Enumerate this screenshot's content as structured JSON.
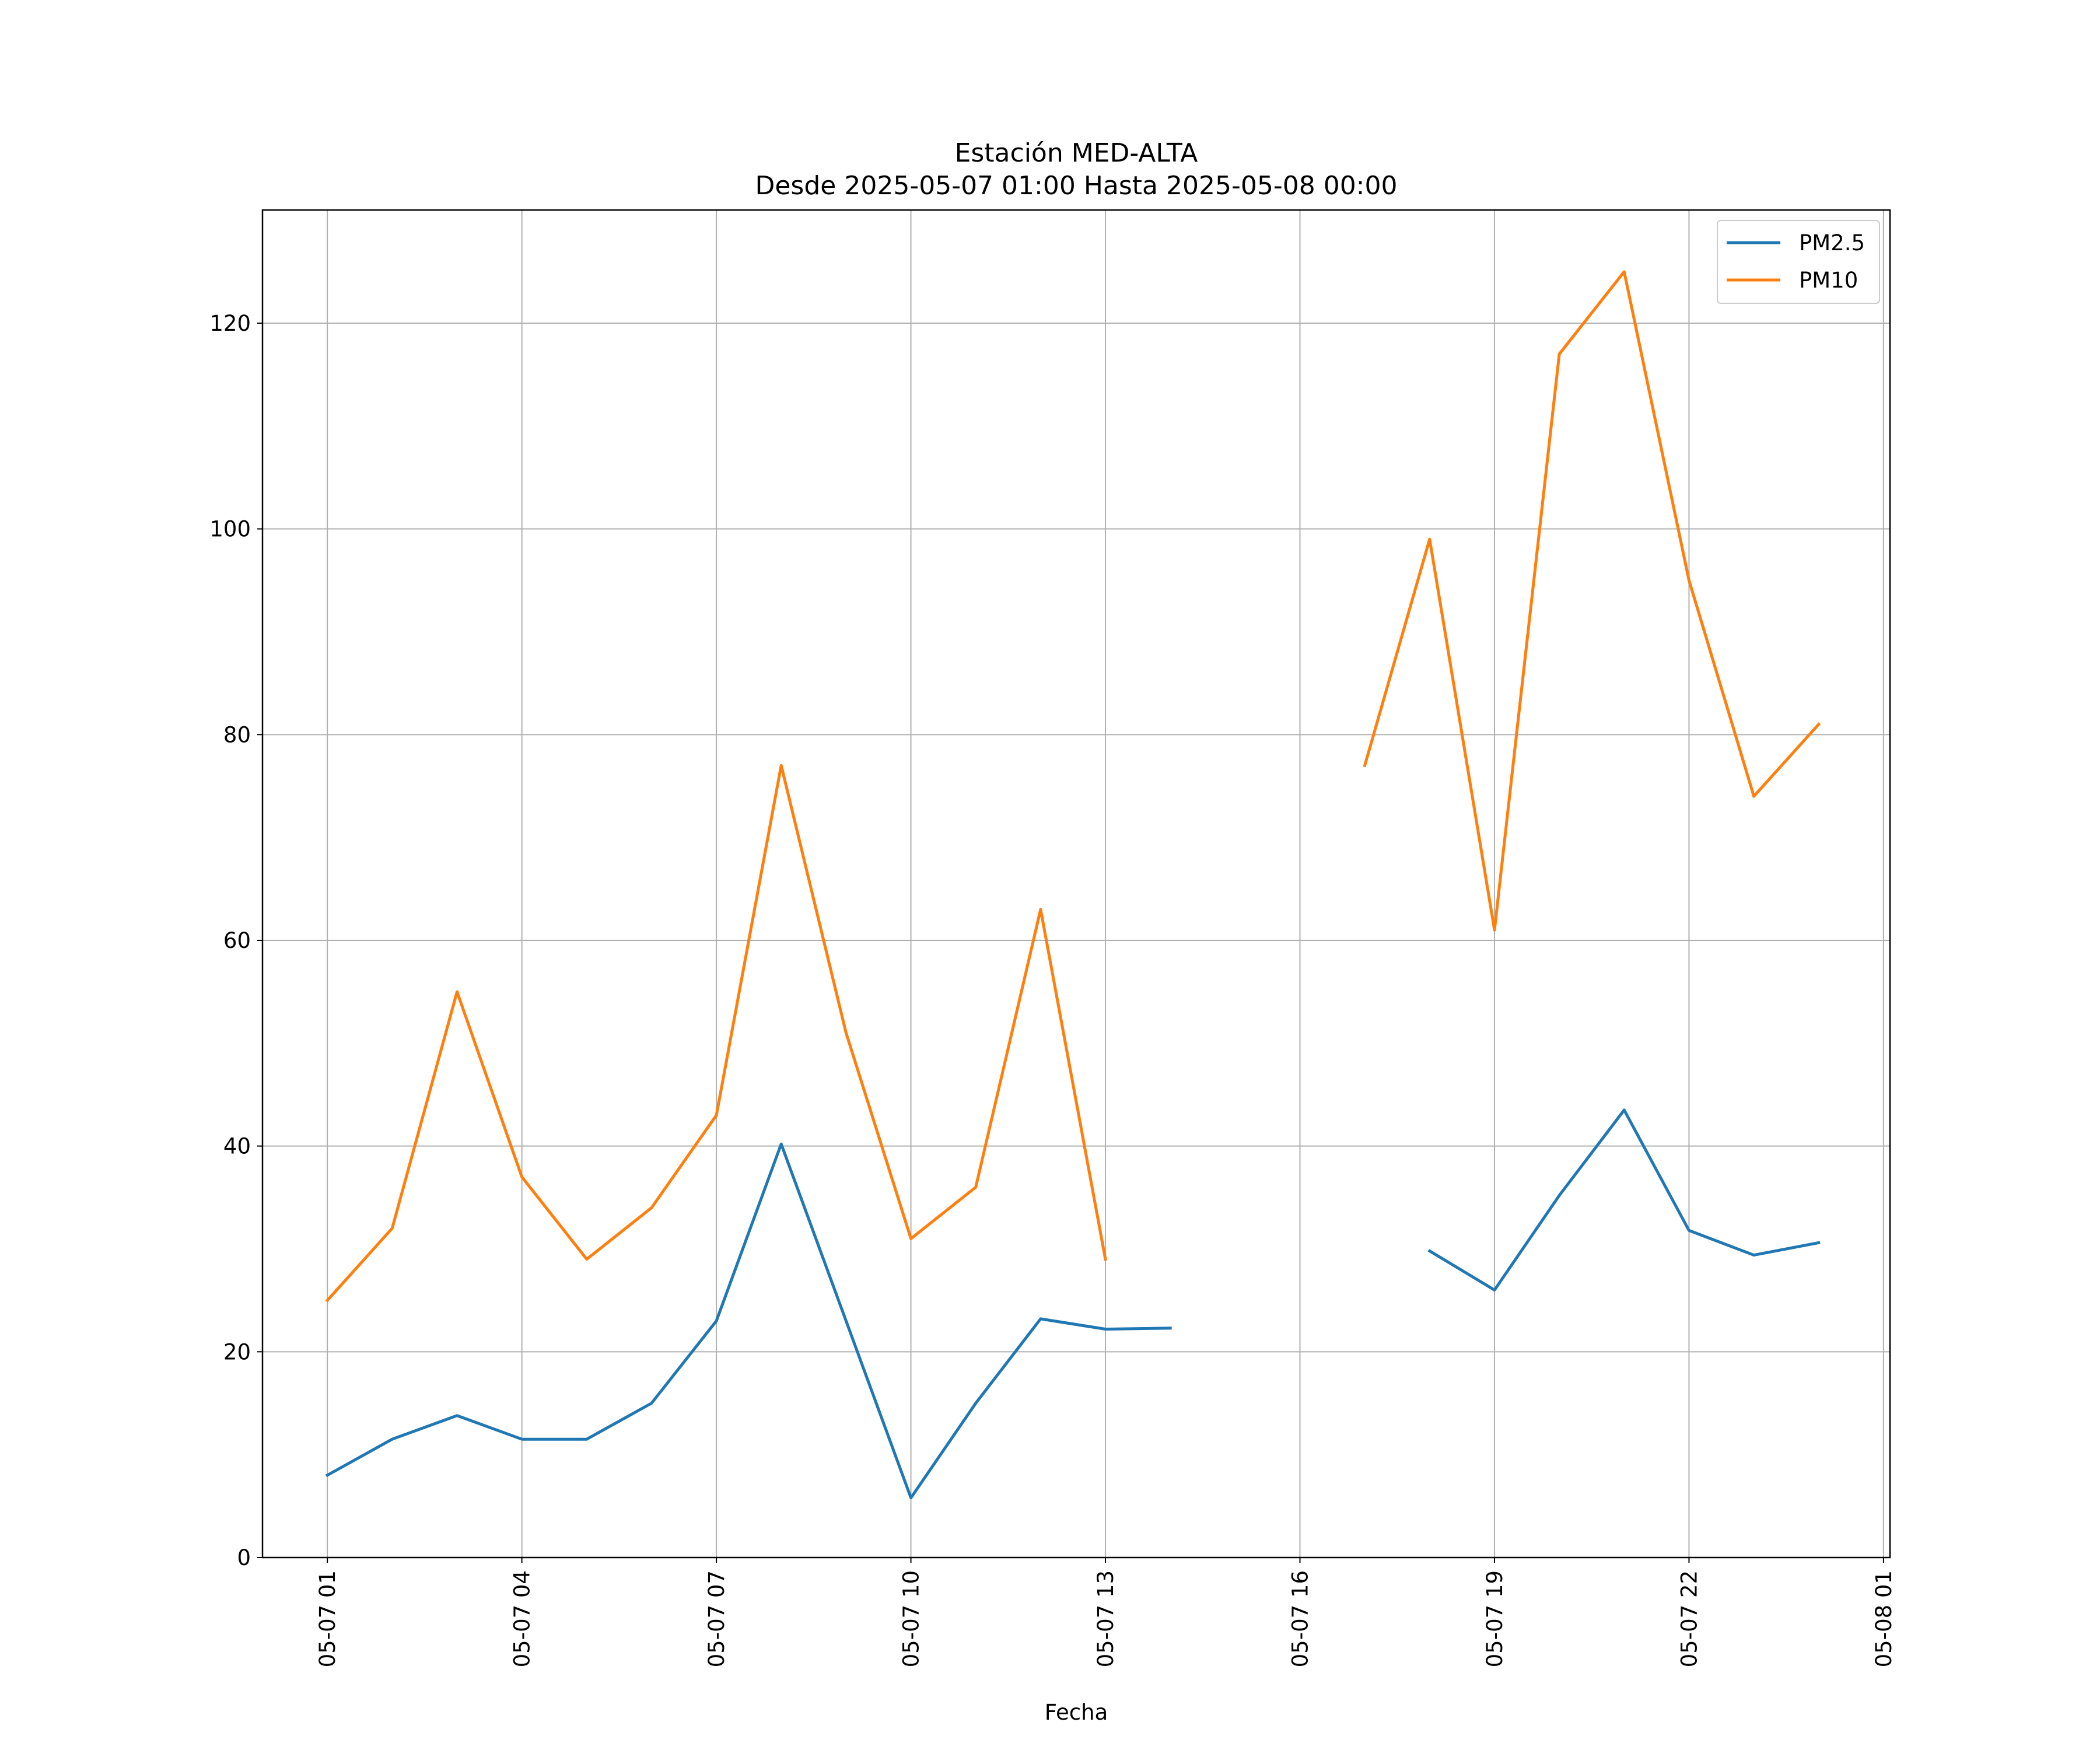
{
  "chart_data": {
    "type": "line",
    "title_lines": [
      "Estación MED-ALTA",
      "Desde 2025-05-07 01:00 Hasta 2025-05-08 00:00"
    ],
    "xlabel": "Fecha",
    "ylabel": "",
    "x": [
      "05-07 01",
      "05-07 02",
      "05-07 03",
      "05-07 04",
      "05-07 05",
      "05-07 06",
      "05-07 07",
      "05-07 08",
      "05-07 09",
      "05-07 10",
      "05-07 11",
      "05-07 12",
      "05-07 13",
      "05-07 14",
      "05-07 15",
      "05-07 16",
      "05-07 17",
      "05-07 18",
      "05-07 19",
      "05-07 20",
      "05-07 21",
      "05-07 22",
      "05-07 23",
      "05-08 00"
    ],
    "xlim": [
      "2025-05-07 00:00",
      "2025-05-08 01:06"
    ],
    "xticks": [
      "05-07 01",
      "05-07 04",
      "05-07 07",
      "05-07 10",
      "05-07 13",
      "05-07 16",
      "05-07 19",
      "05-07 22",
      "05-08 01"
    ],
    "ylim": [
      0,
      131
    ],
    "yticks": [
      0,
      20,
      40,
      60,
      80,
      100,
      120
    ],
    "grid": true,
    "legend_position": "top-right",
    "series": [
      {
        "name": "PM2.5",
        "color": "#1f77b4",
        "values": [
          8.0,
          11.5,
          13.8,
          11.5,
          11.5,
          15.0,
          23.0,
          40.2,
          23.0,
          5.8,
          15.0,
          23.2,
          22.2,
          22.3,
          null,
          null,
          null,
          29.8,
          26.0,
          35.2,
          43.5,
          31.8,
          29.4,
          30.6
        ]
      },
      {
        "name": "PM10",
        "color": "#ff7f0e",
        "values": [
          25,
          32,
          55,
          37,
          29,
          34,
          43,
          77,
          51,
          31,
          36,
          63,
          29,
          null,
          null,
          null,
          77,
          99,
          61,
          117,
          125,
          95,
          74,
          81
        ]
      }
    ]
  }
}
